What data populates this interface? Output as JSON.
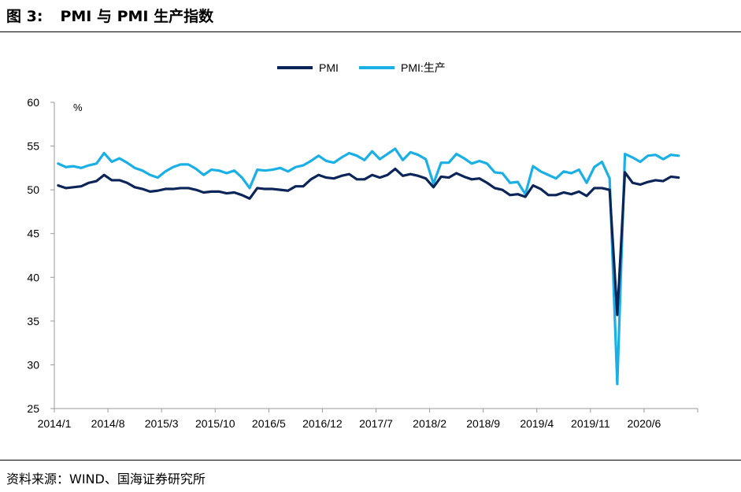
{
  "figure": {
    "label": "图 3:",
    "title": "PMI 与 PMI 生产指数"
  },
  "source": "资料来源：WIND、国海证券研究所",
  "colors": {
    "pmi": "#0c2559",
    "pmi_production": "#1ab0e6",
    "axis": "#999999"
  },
  "chart_data": {
    "type": "line",
    "unit_label": "%",
    "ylim": [
      25,
      60
    ],
    "yticks": [
      25,
      30,
      35,
      40,
      45,
      50,
      55,
      60
    ],
    "x_tick_labels": [
      "2014/1",
      "2014/8",
      "2015/3",
      "2015/10",
      "2016/5",
      "2016/12",
      "2017/7",
      "2018/2",
      "2018/9",
      "2019/4",
      "2019/11",
      "2020/6"
    ],
    "x_start": "2014/1",
    "x_end": "2020/12",
    "grid": false,
    "legend_position": "top-center",
    "series": [
      {
        "name": "PMI",
        "color_key": "pmi",
        "values": [
          50.5,
          50.2,
          50.3,
          50.4,
          50.8,
          51.0,
          51.7,
          51.1,
          51.1,
          50.8,
          50.3,
          50.1,
          49.8,
          49.9,
          50.1,
          50.1,
          50.2,
          50.2,
          50.0,
          49.7,
          49.8,
          49.8,
          49.6,
          49.7,
          49.4,
          49.0,
          50.2,
          50.1,
          50.1,
          50.0,
          49.9,
          50.4,
          50.4,
          51.2,
          51.7,
          51.4,
          51.3,
          51.6,
          51.8,
          51.2,
          51.2,
          51.7,
          51.4,
          51.7,
          52.4,
          51.6,
          51.8,
          51.6,
          51.3,
          50.3,
          51.5,
          51.4,
          51.9,
          51.5,
          51.2,
          51.3,
          50.8,
          50.2,
          50.0,
          49.4,
          49.5,
          49.2,
          50.5,
          50.1,
          49.4,
          49.4,
          49.7,
          49.5,
          49.8,
          49.3,
          50.2,
          50.2,
          50.0,
          35.7,
          52.0,
          50.8,
          50.6,
          50.9,
          51.1,
          51.0,
          51.5,
          51.4
        ],
        "note": "monthly 2014/1 – 2020/10"
      },
      {
        "name": "PMI:生产",
        "color_key": "pmi_production",
        "values": [
          53.0,
          52.6,
          52.7,
          52.5,
          52.8,
          53.0,
          54.2,
          53.2,
          53.6,
          53.1,
          52.5,
          52.2,
          51.7,
          51.4,
          52.1,
          52.6,
          52.9,
          52.9,
          52.4,
          51.7,
          52.3,
          52.2,
          51.9,
          52.2,
          51.4,
          50.2,
          52.3,
          52.2,
          52.3,
          52.5,
          52.1,
          52.6,
          52.8,
          53.3,
          53.9,
          53.3,
          53.1,
          53.7,
          54.2,
          53.9,
          53.4,
          54.4,
          53.5,
          54.1,
          54.7,
          53.4,
          54.3,
          54.0,
          53.5,
          50.7,
          53.1,
          53.1,
          54.1,
          53.6,
          53.0,
          53.3,
          53.0,
          52.0,
          51.9,
          50.8,
          50.9,
          49.5,
          52.7,
          52.1,
          51.7,
          51.3,
          52.1,
          51.9,
          52.3,
          50.8,
          52.6,
          53.2,
          51.3,
          27.8,
          54.1,
          53.7,
          53.2,
          53.9,
          54.0,
          53.5,
          54.0,
          53.9
        ],
        "note": "monthly 2014/1 – 2020/10"
      }
    ]
  }
}
